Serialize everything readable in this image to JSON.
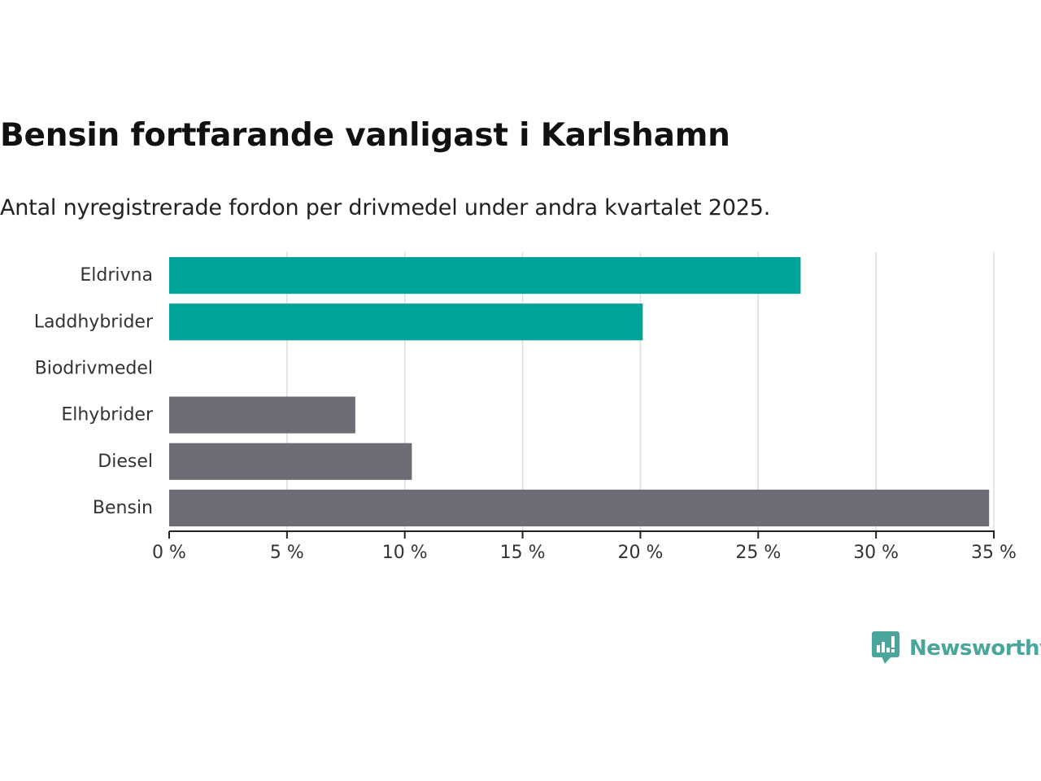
{
  "chart_data": {
    "type": "bar",
    "orientation": "horizontal",
    "title": "Bensin fortfarande vanligast i Karlshamn",
    "subtitle": "Antal nyregistrerade fordon per drivmedel under andra kvartalet 2025.",
    "categories": [
      "Eldrivna",
      "Laddhybrider",
      "Biodrivmedel",
      "Elhybrider",
      "Diesel",
      "Bensin"
    ],
    "values": [
      26.8,
      20.1,
      0,
      7.9,
      10.3,
      34.8
    ],
    "bar_colors": [
      "#00a398",
      "#00a398",
      "#00a398",
      "#6e6d75",
      "#6e6d75",
      "#6e6d75"
    ],
    "xlim": [
      0,
      35
    ],
    "xticks": [
      0,
      5,
      10,
      15,
      20,
      25,
      30,
      35
    ],
    "xtick_labels": [
      "0 %",
      "5 %",
      "10 %",
      "15 %",
      "20 %",
      "25 %",
      "30 %",
      "35 %"
    ],
    "grid": "vertical",
    "xlabel": "",
    "ylabel": ""
  },
  "brand": {
    "name": "Newsworthy",
    "logo_icon": "bar-chart-speech-bubble-icon",
    "color": "#4aa59a"
  }
}
